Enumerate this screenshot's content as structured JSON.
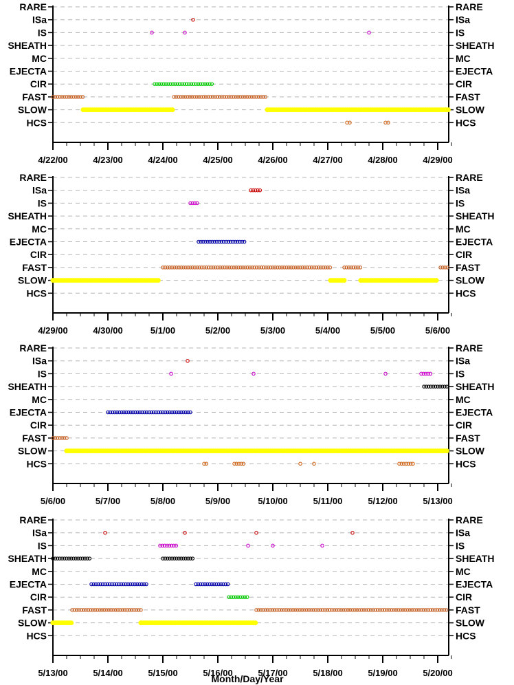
{
  "colors": {
    "RARE": "#000000",
    "ISa": "#cc0000",
    "IS": "#cc00cc",
    "SHEATH": "#000000",
    "MC": "#000000",
    "EJECTA": "#0000aa",
    "CIR": "#00cc00",
    "FAST": "#c86428",
    "SLOW": "#ffff00",
    "HCS": "#d2691e"
  },
  "chart_data": [
    {
      "type": "scatter",
      "categories": [
        "RARE",
        "ISa",
        "IS",
        "SHEATH",
        "MC",
        "EJECTA",
        "CIR",
        "FAST",
        "SLOW",
        "HCS"
      ],
      "x_ticks": [
        "4/22/00",
        "4/23/00",
        "4/24/00",
        "4/25/00",
        "4/26/00",
        "4/27/00",
        "4/28/00",
        "4/29/00"
      ],
      "xlim": [
        0,
        7.2
      ],
      "grid": true,
      "segments": [
        {
          "category": "ISa",
          "points": [
            2.55
          ]
        },
        {
          "category": "IS",
          "points": [
            1.8,
            2.4,
            5.75
          ]
        },
        {
          "category": "CIR",
          "range": [
            1.85,
            2.9
          ]
        },
        {
          "category": "FAST",
          "range": [
            0.0,
            0.55
          ]
        },
        {
          "category": "FAST",
          "range": [
            2.2,
            3.9
          ]
        },
        {
          "category": "SLOW",
          "range": [
            0.55,
            2.2
          ]
        },
        {
          "category": "SLOW",
          "range": [
            3.9,
            7.2
          ]
        },
        {
          "category": "HCS",
          "points": [
            5.35,
            5.4,
            6.05,
            6.1
          ]
        }
      ]
    },
    {
      "type": "scatter",
      "categories": [
        "RARE",
        "ISa",
        "IS",
        "SHEATH",
        "MC",
        "EJECTA",
        "CIR",
        "FAST",
        "SLOW",
        "HCS"
      ],
      "x_ticks": [
        "4/29/00",
        "4/30/00",
        "5/1/00",
        "5/2/00",
        "5/3/00",
        "5/4/00",
        "5/5/00",
        "5/6/00"
      ],
      "xlim": [
        0,
        7.2
      ],
      "grid": true,
      "segments": [
        {
          "category": "ISa",
          "range": [
            3.6,
            3.8
          ]
        },
        {
          "category": "IS",
          "range": [
            2.5,
            2.65
          ]
        },
        {
          "category": "EJECTA",
          "range": [
            2.65,
            3.5
          ]
        },
        {
          "category": "FAST",
          "range": [
            2.0,
            5.05
          ]
        },
        {
          "category": "FAST",
          "range": [
            5.3,
            5.6
          ]
        },
        {
          "category": "FAST",
          "range": [
            7.05,
            7.2
          ]
        },
        {
          "category": "SLOW",
          "range": [
            0.0,
            1.95
          ]
        },
        {
          "category": "SLOW",
          "range": [
            5.05,
            5.3
          ]
        },
        {
          "category": "SLOW",
          "range": [
            5.6,
            7.0
          ]
        }
      ]
    },
    {
      "type": "scatter",
      "categories": [
        "RARE",
        "ISa",
        "IS",
        "SHEATH",
        "MC",
        "EJECTA",
        "CIR",
        "FAST",
        "SLOW",
        "HCS"
      ],
      "x_ticks": [
        "5/6/00",
        "5/7/00",
        "5/8/00",
        "5/9/00",
        "5/10/00",
        "5/11/00",
        "5/12/00",
        "5/13/00"
      ],
      "xlim": [
        0,
        7.2
      ],
      "grid": true,
      "segments": [
        {
          "category": "ISa",
          "points": [
            2.45
          ]
        },
        {
          "category": "IS",
          "points": [
            2.15,
            3.65,
            6.05
          ]
        },
        {
          "category": "IS",
          "range": [
            6.7,
            6.9
          ]
        },
        {
          "category": "SHEATH",
          "range": [
            6.75,
            7.2
          ]
        },
        {
          "category": "EJECTA",
          "range": [
            1.0,
            2.5
          ]
        },
        {
          "category": "FAST",
          "range": [
            0.0,
            0.25
          ]
        },
        {
          "category": "SLOW",
          "range": [
            0.25,
            7.2
          ]
        },
        {
          "category": "HCS",
          "range": [
            2.75,
            2.82
          ]
        },
        {
          "category": "HCS",
          "range": [
            3.3,
            3.5
          ]
        },
        {
          "category": "HCS",
          "points": [
            4.5,
            4.75
          ]
        },
        {
          "category": "HCS",
          "range": [
            6.3,
            6.55
          ]
        }
      ]
    },
    {
      "type": "scatter",
      "categories": [
        "RARE",
        "ISa",
        "IS",
        "SHEATH",
        "MC",
        "EJECTA",
        "CIR",
        "FAST",
        "SLOW",
        "HCS"
      ],
      "x_ticks": [
        "5/13/00",
        "5/14/00",
        "5/15/00",
        "5/16/00",
        "5/17/00",
        "5/18/00",
        "5/19/00",
        "5/20/00"
      ],
      "xlim": [
        0,
        7.2
      ],
      "grid": true,
      "xlabel": "Month/Day/Year",
      "segments": [
        {
          "category": "ISa",
          "points": [
            0.95,
            2.4,
            3.7,
            5.45
          ]
        },
        {
          "category": "IS",
          "range": [
            1.95,
            2.25
          ]
        },
        {
          "category": "IS",
          "points": [
            3.55,
            4.0,
            4.9
          ]
        },
        {
          "category": "SHEATH",
          "range": [
            0.0,
            0.7
          ]
        },
        {
          "category": "SHEATH",
          "range": [
            2.0,
            2.55
          ]
        },
        {
          "category": "EJECTA",
          "range": [
            0.7,
            1.7
          ]
        },
        {
          "category": "EJECTA",
          "range": [
            2.6,
            3.2
          ]
        },
        {
          "category": "CIR",
          "range": [
            3.2,
            3.55
          ]
        },
        {
          "category": "FAST",
          "range": [
            0.35,
            1.6
          ]
        },
        {
          "category": "FAST",
          "range": [
            3.7,
            7.2
          ]
        },
        {
          "category": "SLOW",
          "range": [
            0.0,
            0.35
          ]
        },
        {
          "category": "SLOW",
          "range": [
            1.6,
            3.7
          ]
        }
      ]
    }
  ]
}
